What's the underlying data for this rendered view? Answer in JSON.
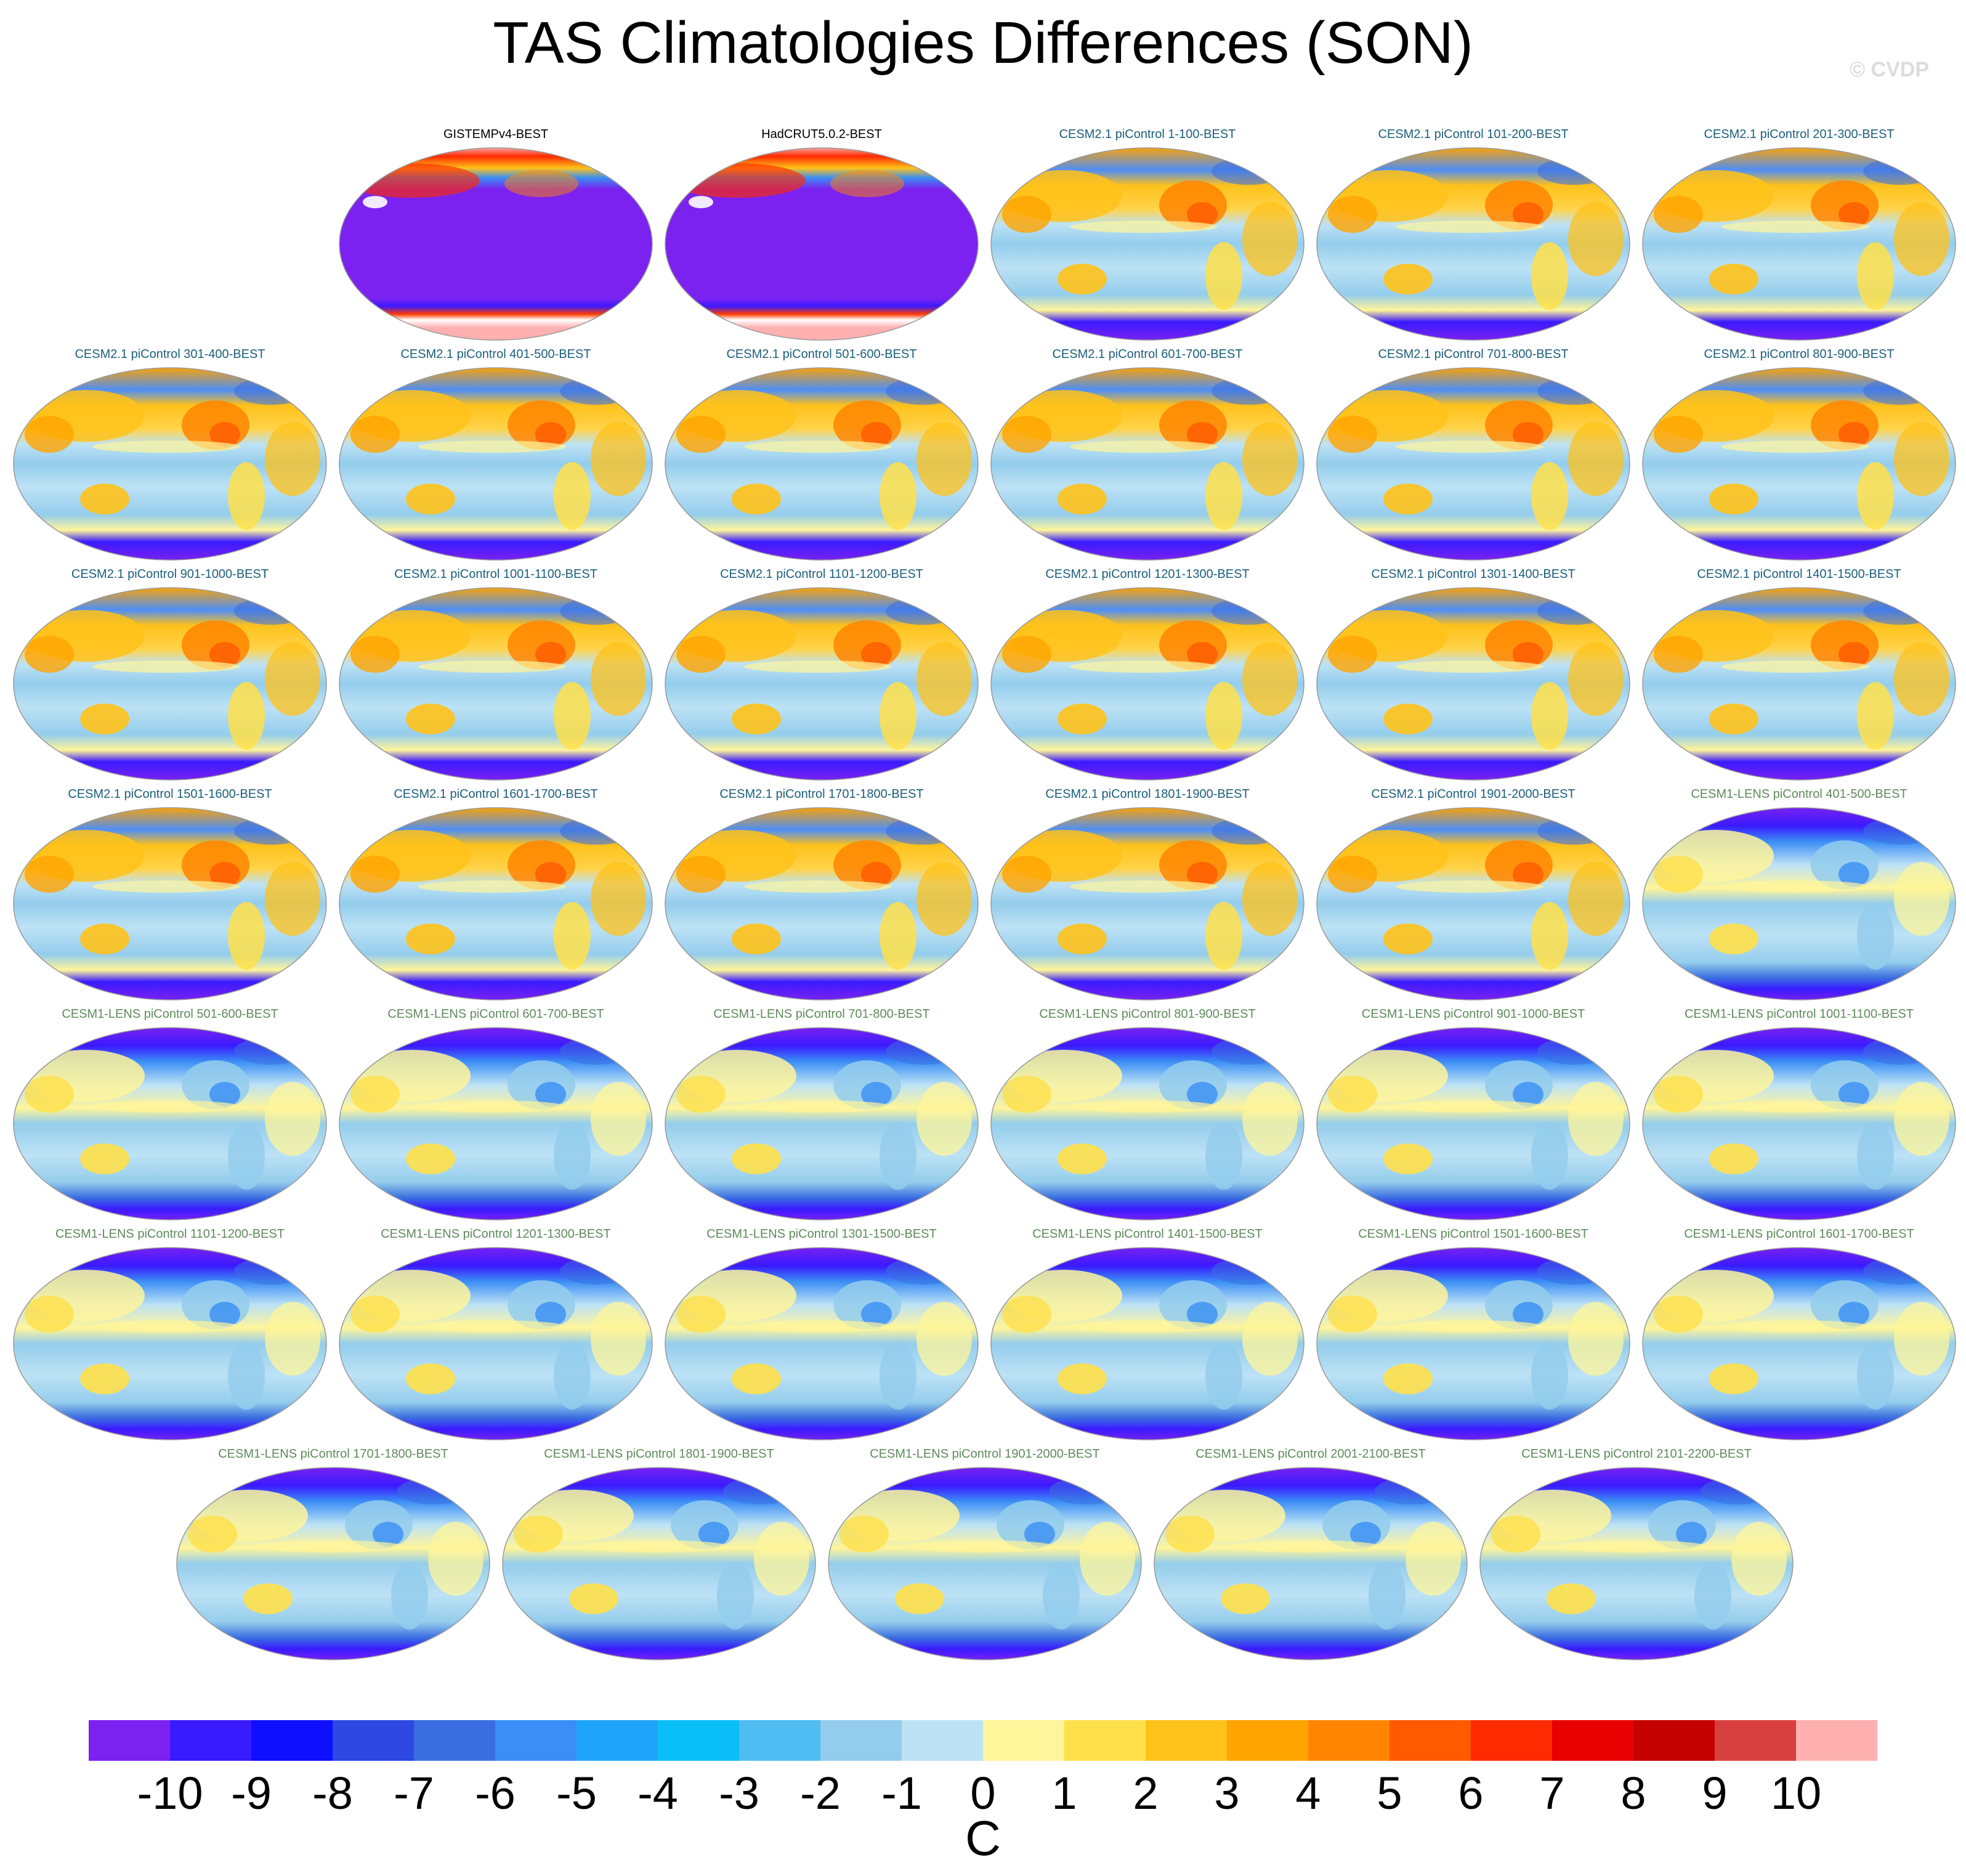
{
  "title": "TAS Climatologies Differences (SON)",
  "watermark": "© CVDP",
  "groups": {
    "obs": {
      "style": "obs"
    },
    "cesm2": {
      "style": "cesm2"
    },
    "cesm1": {
      "style": "cesm1"
    }
  },
  "panels": [
    {
      "label": "GISTEMPv4-BEST",
      "group": "obs"
    },
    {
      "label": "HadCRUT5.0.2-BEST",
      "group": "obs"
    },
    {
      "label": "CESM2.1 piControl 1-100-BEST",
      "group": "cesm2"
    },
    {
      "label": "CESM2.1 piControl 101-200-BEST",
      "group": "cesm2"
    },
    {
      "label": "CESM2.1 piControl 201-300-BEST",
      "group": "cesm2"
    },
    {
      "label": "CESM2.1 piControl 301-400-BEST",
      "group": "cesm2"
    },
    {
      "label": "CESM2.1 piControl 401-500-BEST",
      "group": "cesm2"
    },
    {
      "label": "CESM2.1 piControl 501-600-BEST",
      "group": "cesm2"
    },
    {
      "label": "CESM2.1 piControl 601-700-BEST",
      "group": "cesm2"
    },
    {
      "label": "CESM2.1 piControl 701-800-BEST",
      "group": "cesm2"
    },
    {
      "label": "CESM2.1 piControl 801-900-BEST",
      "group": "cesm2"
    },
    {
      "label": "CESM2.1 piControl 901-1000-BEST",
      "group": "cesm2"
    },
    {
      "label": "CESM2.1 piControl 1001-1100-BEST",
      "group": "cesm2"
    },
    {
      "label": "CESM2.1 piControl 1101-1200-BEST",
      "group": "cesm2"
    },
    {
      "label": "CESM2.1 piControl 1201-1300-BEST",
      "group": "cesm2"
    },
    {
      "label": "CESM2.1 piControl 1301-1400-BEST",
      "group": "cesm2"
    },
    {
      "label": "CESM2.1 piControl 1401-1500-BEST",
      "group": "cesm2"
    },
    {
      "label": "CESM2.1 piControl 1501-1600-BEST",
      "group": "cesm2"
    },
    {
      "label": "CESM2.1 piControl 1601-1700-BEST",
      "group": "cesm2"
    },
    {
      "label": "CESM2.1 piControl 1701-1800-BEST",
      "group": "cesm2"
    },
    {
      "label": "CESM2.1 piControl 1801-1900-BEST",
      "group": "cesm2"
    },
    {
      "label": "CESM2.1 piControl 1901-2000-BEST",
      "group": "cesm2"
    },
    {
      "label": "CESM1-LENS piControl 401-500-BEST",
      "group": "cesm1"
    },
    {
      "label": "CESM1-LENS piControl 501-600-BEST",
      "group": "cesm1"
    },
    {
      "label": "CESM1-LENS piControl 601-700-BEST",
      "group": "cesm1"
    },
    {
      "label": "CESM1-LENS piControl 701-800-BEST",
      "group": "cesm1"
    },
    {
      "label": "CESM1-LENS piControl 801-900-BEST",
      "group": "cesm1"
    },
    {
      "label": "CESM1-LENS piControl 901-1000-BEST",
      "group": "cesm1"
    },
    {
      "label": "CESM1-LENS piControl 1001-1100-BEST",
      "group": "cesm1"
    },
    {
      "label": "CESM1-LENS piControl 1101-1200-BEST",
      "group": "cesm1"
    },
    {
      "label": "CESM1-LENS piControl 1201-1300-BEST",
      "group": "cesm1"
    },
    {
      "label": "CESM1-LENS piControl 1301-1500-BEST",
      "group": "cesm1"
    },
    {
      "label": "CESM1-LENS piControl 1401-1500-BEST",
      "group": "cesm1"
    },
    {
      "label": "CESM1-LENS piControl 1501-1600-BEST",
      "group": "cesm1"
    },
    {
      "label": "CESM1-LENS piControl 1601-1700-BEST",
      "group": "cesm1"
    },
    {
      "label": "CESM1-LENS piControl 1701-1800-BEST",
      "group": "cesm1"
    },
    {
      "label": "CESM1-LENS piControl 1801-1900-BEST",
      "group": "cesm1"
    },
    {
      "label": "CESM1-LENS piControl 1901-2000-BEST",
      "group": "cesm1"
    },
    {
      "label": "CESM1-LENS piControl 2001-2100-BEST",
      "group": "cesm1"
    },
    {
      "label": "CESM1-LENS piControl 2101-2200-BEST",
      "group": "cesm1"
    }
  ],
  "colorbar": {
    "unit": "C",
    "ticks": [
      "-10",
      "-9",
      "-8",
      "-7",
      "-6",
      "-5",
      "-4",
      "-3",
      "-2",
      "-1",
      "0",
      "1",
      "2",
      "3",
      "4",
      "5",
      "6",
      "7",
      "8",
      "9",
      "10"
    ],
    "colors": [
      "#7b22f0",
      "#3a1aff",
      "#0f0fff",
      "#2d48e3",
      "#3a6ee0",
      "#3a8ef5",
      "#1ea4f8",
      "#0abef8",
      "#4fbdf1",
      "#94cdec",
      "#bde2f5",
      "#fff59a",
      "#ffe04a",
      "#ffc21a",
      "#ffa400",
      "#ff8500",
      "#ff5a00",
      "#ff2a00",
      "#e80000",
      "#c40000",
      "#d84040",
      "#ffb0b0"
    ]
  }
}
